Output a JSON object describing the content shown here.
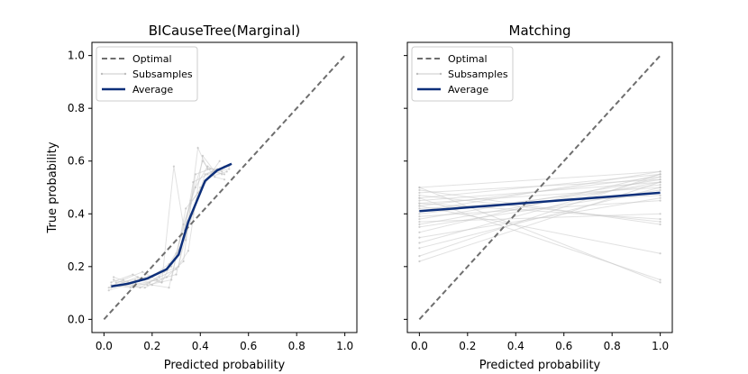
{
  "chart_data": [
    {
      "type": "line",
      "title": "BICauseTree(Marginal)",
      "xlabel": "Predicted probability",
      "ylabel": "True probability",
      "xlim": [
        -0.05,
        1.05
      ],
      "ylim": [
        -0.05,
        1.05
      ],
      "xticks": [
        "0.0",
        "0.2",
        "0.4",
        "0.6",
        "0.8",
        "1.0"
      ],
      "yticks": [
        "0.0",
        "0.2",
        "0.4",
        "0.6",
        "0.8",
        "1.0"
      ],
      "legend": {
        "position": "top-left",
        "entries": [
          "Optimal",
          "Subsamples",
          "Average"
        ]
      },
      "series": [
        {
          "name": "Optimal",
          "style": "dashed",
          "color": "#6e6e6e",
          "x": [
            0,
            1
          ],
          "y": [
            0,
            1
          ]
        },
        {
          "name": "Average",
          "style": "solid",
          "color": "#0d2f7a",
          "x": [
            0.03,
            0.1,
            0.18,
            0.26,
            0.31,
            0.35,
            0.42,
            0.47,
            0.53
          ],
          "y": [
            0.125,
            0.135,
            0.155,
            0.19,
            0.245,
            0.37,
            0.525,
            0.565,
            0.59
          ]
        },
        {
          "name": "Subsamples",
          "style": "faint",
          "color": "#c8c8c8",
          "lines": [
            {
              "x": [
                0.03,
                0.1,
                0.2,
                0.28,
                0.33,
                0.37,
                0.42,
                0.47,
                0.52
              ],
              "y": [
                0.12,
                0.14,
                0.16,
                0.2,
                0.3,
                0.4,
                0.55,
                0.57,
                0.58
              ]
            },
            {
              "x": [
                0.04,
                0.12,
                0.22,
                0.3,
                0.35,
                0.4,
                0.45,
                0.5
              ],
              "y": [
                0.15,
                0.13,
                0.15,
                0.17,
                0.35,
                0.5,
                0.56,
                0.55
              ]
            },
            {
              "x": [
                0.05,
                0.14,
                0.24,
                0.29,
                0.34,
                0.38,
                0.44,
                0.49
              ],
              "y": [
                0.13,
                0.16,
                0.14,
                0.58,
                0.3,
                0.55,
                0.57,
                0.56
              ]
            },
            {
              "x": [
                0.02,
                0.09,
                0.17,
                0.26,
                0.33,
                0.39,
                0.43,
                0.48
              ],
              "y": [
                0.11,
                0.13,
                0.12,
                0.16,
                0.22,
                0.65,
                0.57,
                0.57
              ]
            },
            {
              "x": [
                0.05,
                0.13,
                0.21,
                0.27,
                0.32,
                0.36,
                0.41,
                0.46,
                0.5
              ],
              "y": [
                0.14,
                0.15,
                0.17,
                0.21,
                0.28,
                0.45,
                0.6,
                0.54,
                0.53
              ]
            },
            {
              "x": [
                0.03,
                0.11,
                0.19,
                0.25,
                0.31,
                0.37,
                0.43,
                0.5
              ],
              "y": [
                0.13,
                0.12,
                0.14,
                0.18,
                0.2,
                0.52,
                0.55,
                0.58
              ]
            },
            {
              "x": [
                0.04,
                0.1,
                0.18,
                0.28,
                0.34,
                0.39,
                0.44,
                0.51
              ],
              "y": [
                0.16,
                0.14,
                0.13,
                0.15,
                0.42,
                0.48,
                0.54,
                0.56
              ]
            },
            {
              "x": [
                0.02,
                0.08,
                0.16,
                0.24,
                0.3,
                0.36,
                0.42,
                0.48
              ],
              "y": [
                0.12,
                0.15,
                0.18,
                0.14,
                0.25,
                0.44,
                0.52,
                0.6
              ]
            },
            {
              "x": [
                0.06,
                0.15,
                0.23,
                0.3,
                0.35,
                0.41,
                0.46,
                0.52
              ],
              "y": [
                0.13,
                0.12,
                0.16,
                0.19,
                0.26,
                0.62,
                0.56,
                0.57
              ]
            },
            {
              "x": [
                0.03,
                0.12,
                0.2,
                0.27,
                0.33,
                0.38,
                0.43,
                0.49
              ],
              "y": [
                0.14,
                0.17,
                0.13,
                0.12,
                0.36,
                0.5,
                0.58,
                0.55
              ]
            }
          ]
        }
      ]
    },
    {
      "type": "line",
      "title": "Matching",
      "xlabel": "Predicted probability",
      "ylabel": "",
      "xlim": [
        -0.05,
        1.05
      ],
      "ylim": [
        -0.05,
        1.05
      ],
      "xticks": [
        "0.0",
        "0.2",
        "0.4",
        "0.6",
        "0.8",
        "1.0"
      ],
      "yticks": [],
      "legend": {
        "position": "top-left",
        "entries": [
          "Optimal",
          "Subsamples",
          "Average"
        ]
      },
      "series": [
        {
          "name": "Optimal",
          "style": "dashed",
          "color": "#6e6e6e",
          "x": [
            0,
            1
          ],
          "y": [
            0,
            1
          ]
        },
        {
          "name": "Average",
          "style": "solid",
          "color": "#0d2f7a",
          "x": [
            0,
            1
          ],
          "y": [
            0.41,
            0.48
          ]
        },
        {
          "name": "Subsamples",
          "style": "faint",
          "color": "#c8c8c8",
          "lines": [
            {
              "x": [
                0,
                1
              ],
              "y": [
                0.5,
                0.56
              ]
            },
            {
              "x": [
                0,
                1
              ],
              "y": [
                0.48,
                0.53
              ]
            },
            {
              "x": [
                0,
                1
              ],
              "y": [
                0.46,
                0.55
              ]
            },
            {
              "x": [
                0,
                1
              ],
              "y": [
                0.45,
                0.52
              ]
            },
            {
              "x": [
                0,
                1
              ],
              "y": [
                0.44,
                0.5
              ]
            },
            {
              "x": [
                0,
                1
              ],
              "y": [
                0.43,
                0.54
              ]
            },
            {
              "x": [
                0,
                1
              ],
              "y": [
                0.42,
                0.47
              ]
            },
            {
              "x": [
                0,
                1
              ],
              "y": [
                0.41,
                0.56
              ]
            },
            {
              "x": [
                0,
                1
              ],
              "y": [
                0.4,
                0.51
              ]
            },
            {
              "x": [
                0,
                1
              ],
              "y": [
                0.39,
                0.45
              ]
            },
            {
              "x": [
                0,
                1
              ],
              "y": [
                0.38,
                0.53
              ]
            },
            {
              "x": [
                0,
                1
              ],
              "y": [
                0.37,
                0.4
              ]
            },
            {
              "x": [
                0,
                1
              ],
              "y": [
                0.36,
                0.52
              ]
            },
            {
              "x": [
                0,
                1
              ],
              "y": [
                0.35,
                0.49
              ]
            },
            {
              "x": [
                0,
                1
              ],
              "y": [
                0.33,
                0.55
              ]
            },
            {
              "x": [
                0,
                1
              ],
              "y": [
                0.31,
                0.46
              ]
            },
            {
              "x": [
                0,
                1
              ],
              "y": [
                0.29,
                0.54
              ]
            },
            {
              "x": [
                0,
                1
              ],
              "y": [
                0.27,
                0.5
              ]
            },
            {
              "x": [
                0,
                1
              ],
              "y": [
                0.24,
                0.55
              ]
            },
            {
              "x": [
                0,
                1
              ],
              "y": [
                0.22,
                0.52
              ]
            },
            {
              "x": [
                0,
                1
              ],
              "y": [
                0.47,
                0.37
              ]
            },
            {
              "x": [
                0,
                1
              ],
              "y": [
                0.44,
                0.38
              ]
            },
            {
              "x": [
                0,
                1
              ],
              "y": [
                0.49,
                0.36
              ]
            },
            {
              "x": [
                0,
                1
              ],
              "y": [
                0.43,
                0.25
              ]
            },
            {
              "x": [
                0,
                1
              ],
              "y": [
                0.5,
                0.14
              ]
            },
            {
              "x": [
                0,
                1
              ],
              "y": [
                0.46,
                0.15
              ]
            }
          ]
        }
      ]
    }
  ]
}
